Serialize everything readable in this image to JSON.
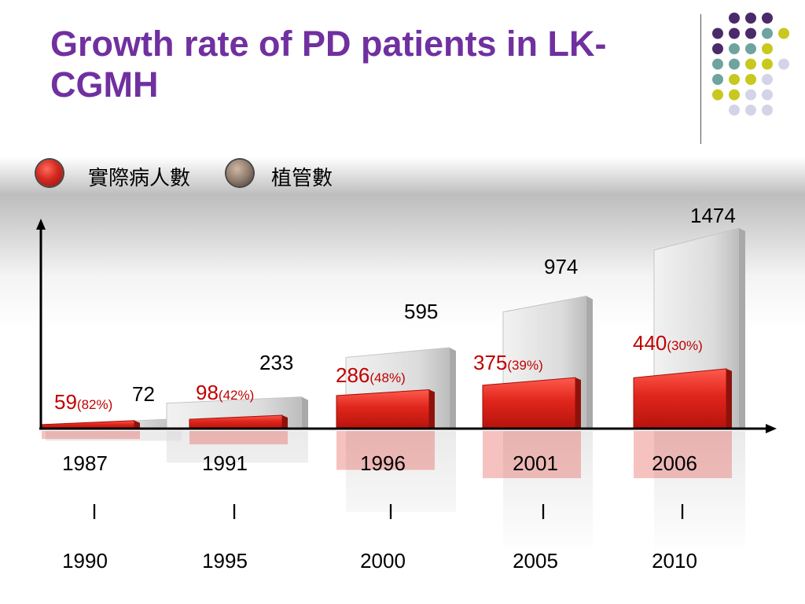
{
  "slide": {
    "title": "Growth rate of PD patients in LK-CGMH"
  },
  "legend": [
    {
      "label": "實際病人數",
      "color": "#d42a20"
    },
    {
      "label": "植管數",
      "color": "#8a7668"
    }
  ],
  "decor_dots": {
    "colors": [
      "#4b2a6b",
      "#6fa3a0",
      "#c8c81e",
      "#d4d4e8"
    ]
  },
  "chart_data": {
    "type": "bar",
    "categories": [
      "1987\nl\n1990",
      "1991\nl\n1995",
      "1996\nl\n2000",
      "2001\nl\n2005",
      "2006\nl\n2010"
    ],
    "category_start": [
      "1987",
      "1991",
      "1996",
      "2001",
      "2006"
    ],
    "category_sep": [
      "l",
      "l",
      "l",
      "l",
      "l"
    ],
    "category_end": [
      "1990",
      "1995",
      "2000",
      "2005",
      "2010"
    ],
    "series": [
      {
        "name": "植管數",
        "values": [
          72,
          233,
          595,
          974,
          1474
        ],
        "color": "#d8d8d8"
      },
      {
        "name": "實際病人數",
        "values": [
          59,
          98,
          286,
          375,
          440
        ],
        "color": "#d42a20"
      }
    ],
    "growth_labels": [
      "(82%)",
      "(42%)",
      "(48%)",
      "(39%)",
      "(30%)"
    ],
    "ylim": [
      0,
      1474
    ]
  }
}
